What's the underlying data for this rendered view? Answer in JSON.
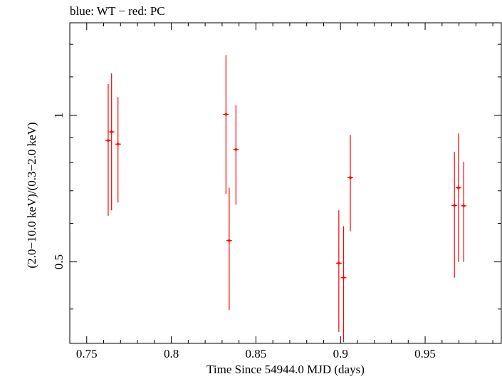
{
  "chart_data": {
    "type": "scatter",
    "title": "blue: WT − red: PC",
    "xlabel": "Time Since 54944.0 MJD (days)",
    "ylabel": "(2.0−10.0 keV)/(0.3−2.0 keV)",
    "xlim": [
      0.74,
      0.995
    ],
    "ylim": [
      0.34,
      1.55
    ],
    "yscale": "log",
    "x_ticks": [
      0.75,
      0.8,
      0.85,
      0.9,
      0.95
    ],
    "x_tick_labels": [
      "0.75",
      "0.8",
      "0.85",
      "0.9",
      "0.95"
    ],
    "y_ticks": [
      0.5,
      1
    ],
    "y_tick_labels": [
      "0.5",
      "1"
    ],
    "grid": false,
    "series": [
      {
        "color": "#ff0000",
        "points": [
          {
            "x": 0.7627,
            "y": 0.888,
            "ylo": 0.622,
            "yhi": 1.16
          },
          {
            "x": 0.7647,
            "y": 0.925,
            "ylo": 0.638,
            "yhi": 1.22
          },
          {
            "x": 0.7685,
            "y": 0.873,
            "ylo": 0.662,
            "yhi": 1.09
          },
          {
            "x": 0.8323,
            "y": 1.005,
            "ylo": 0.69,
            "yhi": 1.33
          },
          {
            "x": 0.8342,
            "y": 0.553,
            "ylo": 0.398,
            "yhi": 0.71
          },
          {
            "x": 0.8382,
            "y": 0.851,
            "ylo": 0.655,
            "yhi": 1.05
          },
          {
            "x": 0.899,
            "y": 0.497,
            "ylo": 0.359,
            "yhi": 0.638
          },
          {
            "x": 0.9018,
            "y": 0.464,
            "ylo": 0.342,
            "yhi": 0.592
          },
          {
            "x": 0.9058,
            "y": 0.745,
            "ylo": 0.578,
            "yhi": 0.912
          },
          {
            "x": 0.9673,
            "y": 0.653,
            "ylo": 0.464,
            "yhi": 0.842
          },
          {
            "x": 0.9697,
            "y": 0.71,
            "ylo": 0.5,
            "yhi": 0.918
          },
          {
            "x": 0.9728,
            "y": 0.652,
            "ylo": 0.5,
            "yhi": 0.803
          }
        ]
      }
    ]
  }
}
